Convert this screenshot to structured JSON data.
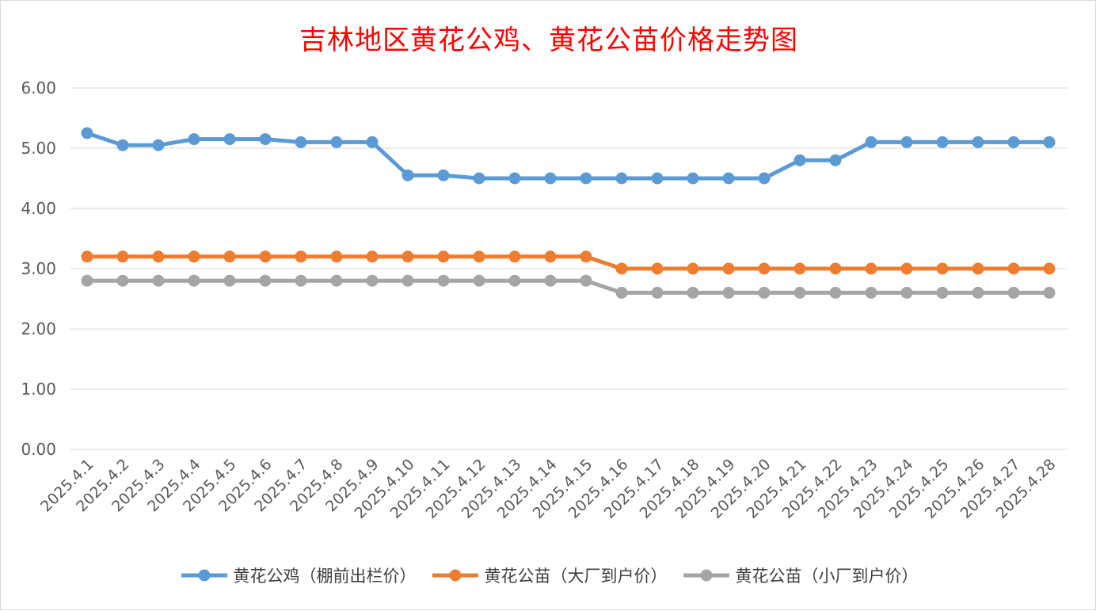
{
  "title": "吉林地区黄花公鸡、黄花公苗价格走势图",
  "chart_data": {
    "type": "line",
    "title": "吉林地区黄花公鸡、黄花公苗价格走势图",
    "x": [
      "2025.4.1",
      "2025.4.2",
      "2025.4.3",
      "2025.4.4",
      "2025.4.5",
      "2025.4.6",
      "2025.4.7",
      "2025.4.8",
      "2025.4.9",
      "2025.4.10",
      "2025.4.11",
      "2025.4.12",
      "2025.4.13",
      "2025.4.14",
      "2025.4.15",
      "2025.4.16",
      "2025.4.17",
      "2025.4.18",
      "2025.4.19",
      "2025.4.20",
      "2025.4.21",
      "2025.4.22",
      "2025.4.23",
      "2025.4.24",
      "2025.4.25",
      "2025.4.26",
      "2025.4.27",
      "2025.4.28"
    ],
    "series": [
      {
        "name": "黄花公鸡（棚前出栏价）",
        "color": "#5b9bd5",
        "values": [
          5.25,
          5.05,
          5.05,
          5.15,
          5.15,
          5.15,
          5.1,
          5.1,
          5.1,
          4.55,
          4.55,
          4.5,
          4.5,
          4.5,
          4.5,
          4.5,
          4.5,
          4.5,
          4.5,
          4.5,
          4.8,
          4.8,
          5.1,
          5.1,
          5.1,
          5.1,
          5.1,
          5.1
        ]
      },
      {
        "name": "黄花公苗（大厂到户价）",
        "color": "#ed7d31",
        "values": [
          3.2,
          3.2,
          3.2,
          3.2,
          3.2,
          3.2,
          3.2,
          3.2,
          3.2,
          3.2,
          3.2,
          3.2,
          3.2,
          3.2,
          3.2,
          3.0,
          3.0,
          3.0,
          3.0,
          3.0,
          3.0,
          3.0,
          3.0,
          3.0,
          3.0,
          3.0,
          3.0,
          3.0
        ]
      },
      {
        "name": "黄花公苗（小厂到户价）",
        "color": "#a5a5a5",
        "values": [
          2.8,
          2.8,
          2.8,
          2.8,
          2.8,
          2.8,
          2.8,
          2.8,
          2.8,
          2.8,
          2.8,
          2.8,
          2.8,
          2.8,
          2.8,
          2.6,
          2.6,
          2.6,
          2.6,
          2.6,
          2.6,
          2.6,
          2.6,
          2.6,
          2.6,
          2.6,
          2.6,
          2.6
        ]
      }
    ],
    "yticks": [
      "0.00",
      "1.00",
      "2.00",
      "3.00",
      "4.00",
      "5.00",
      "6.00"
    ],
    "ylim": [
      0,
      6
    ],
    "xlabel": "",
    "ylabel": "",
    "grid": true,
    "legend_position": "bottom"
  }
}
